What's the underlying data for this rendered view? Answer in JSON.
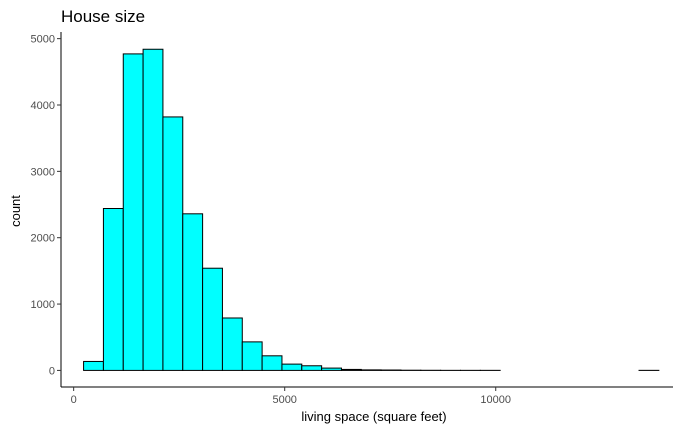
{
  "chart_data": {
    "type": "bar",
    "title": "House size",
    "xlabel": "living space (square feet)",
    "ylabel": "count",
    "xlim": [
      -300,
      14200
    ],
    "ylim": [
      -250,
      5100
    ],
    "x_ticks": [
      {
        "value": 0,
        "label": "0"
      },
      {
        "value": 5000,
        "label": "5000"
      },
      {
        "value": 10000,
        "label": "10000"
      }
    ],
    "y_ticks": [
      {
        "value": 0,
        "label": "0"
      },
      {
        "value": 1000,
        "label": "1000"
      },
      {
        "value": 2000,
        "label": "2000"
      },
      {
        "value": 3000,
        "label": "3000"
      },
      {
        "value": 4000,
        "label": "4000"
      },
      {
        "value": 5000,
        "label": "5000"
      }
    ],
    "bins": [
      {
        "x0": 235,
        "x1": 705,
        "count": 135
      },
      {
        "x0": 705,
        "x1": 1175,
        "count": 2440
      },
      {
        "x0": 1175,
        "x1": 1645,
        "count": 4770
      },
      {
        "x0": 1645,
        "x1": 2115,
        "count": 4840
      },
      {
        "x0": 2115,
        "x1": 2585,
        "count": 3820
      },
      {
        "x0": 2585,
        "x1": 3055,
        "count": 2360
      },
      {
        "x0": 3055,
        "x1": 3525,
        "count": 1540
      },
      {
        "x0": 3525,
        "x1": 3995,
        "count": 790
      },
      {
        "x0": 3995,
        "x1": 4465,
        "count": 430
      },
      {
        "x0": 4465,
        "x1": 4935,
        "count": 220
      },
      {
        "x0": 4935,
        "x1": 5405,
        "count": 95
      },
      {
        "x0": 5405,
        "x1": 5875,
        "count": 70
      },
      {
        "x0": 5875,
        "x1": 6345,
        "count": 35
      },
      {
        "x0": 6345,
        "x1": 6815,
        "count": 15
      },
      {
        "x0": 6815,
        "x1": 7285,
        "count": 8
      },
      {
        "x0": 7285,
        "x1": 7755,
        "count": 6
      },
      {
        "x0": 7755,
        "x1": 8225,
        "count": 3
      },
      {
        "x0": 8225,
        "x1": 8695,
        "count": 2
      },
      {
        "x0": 8695,
        "x1": 9165,
        "count": 1
      },
      {
        "x0": 9165,
        "x1": 9635,
        "count": 1
      },
      {
        "x0": 9635,
        "x1": 10105,
        "count": 1
      },
      {
        "x0": 10105,
        "x1": 10575,
        "count": 0
      },
      {
        "x0": 10575,
        "x1": 11045,
        "count": 0
      },
      {
        "x0": 11045,
        "x1": 11515,
        "count": 0
      },
      {
        "x0": 11515,
        "x1": 11985,
        "count": 0
      },
      {
        "x0": 11985,
        "x1": 12455,
        "count": 0
      },
      {
        "x0": 12455,
        "x1": 12925,
        "count": 0
      },
      {
        "x0": 12925,
        "x1": 13395,
        "count": 0
      },
      {
        "x0": 13395,
        "x1": 13865,
        "count": 1
      }
    ],
    "bar_fill": "#00ffff",
    "bar_stroke": "#000000",
    "grid": false,
    "legend": "none"
  }
}
